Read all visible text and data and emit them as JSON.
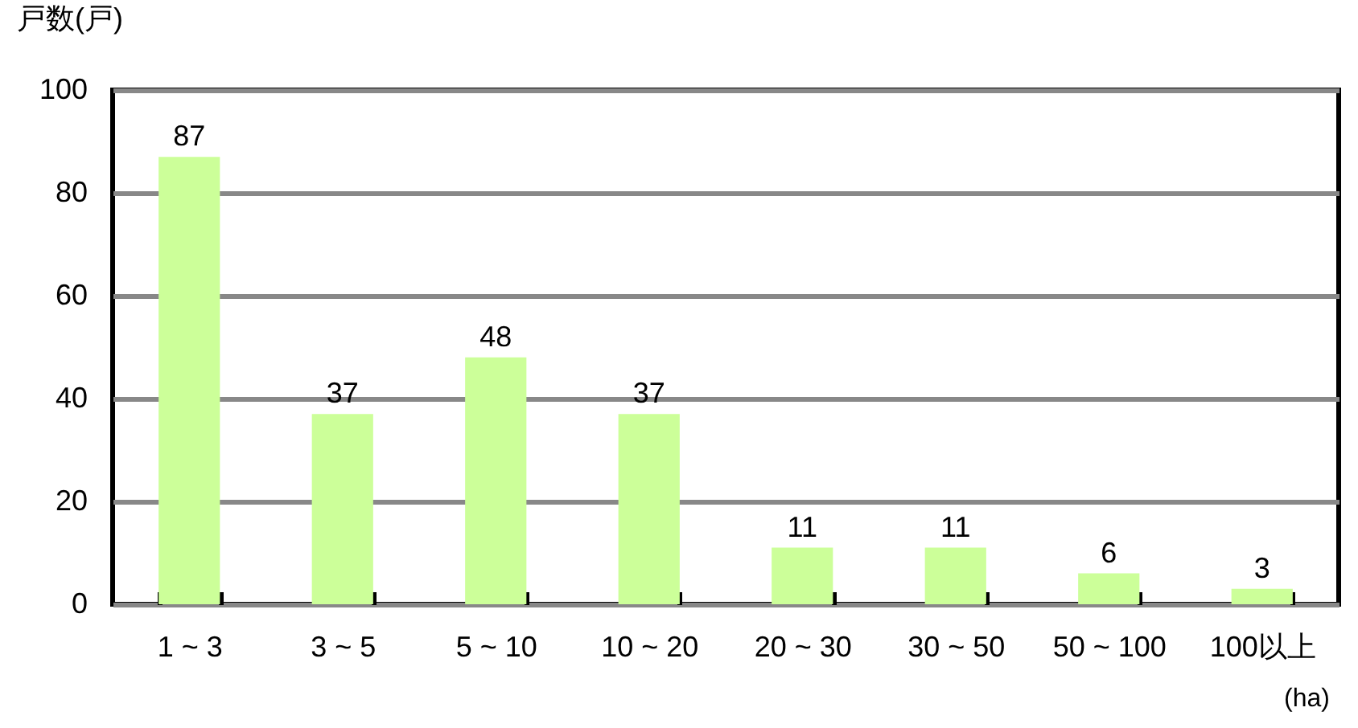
{
  "chart_data": {
    "type": "bar",
    "ylabel": "戸数(戸)",
    "xlabel": "(ha)",
    "categories": [
      "1 ~ 3",
      "3 ~ 5",
      "5 ~ 10",
      "10 ~ 20",
      "20 ~ 30",
      "30 ~ 50",
      "50 ~ 100",
      "100以上"
    ],
    "values": [
      87,
      37,
      48,
      37,
      11,
      11,
      6,
      3
    ],
    "color": "#ccff99",
    "ylim": [
      0,
      100
    ],
    "yticks": [
      0,
      20,
      40,
      60,
      80,
      100
    ],
    "grid": "y",
    "data_labels": true
  }
}
